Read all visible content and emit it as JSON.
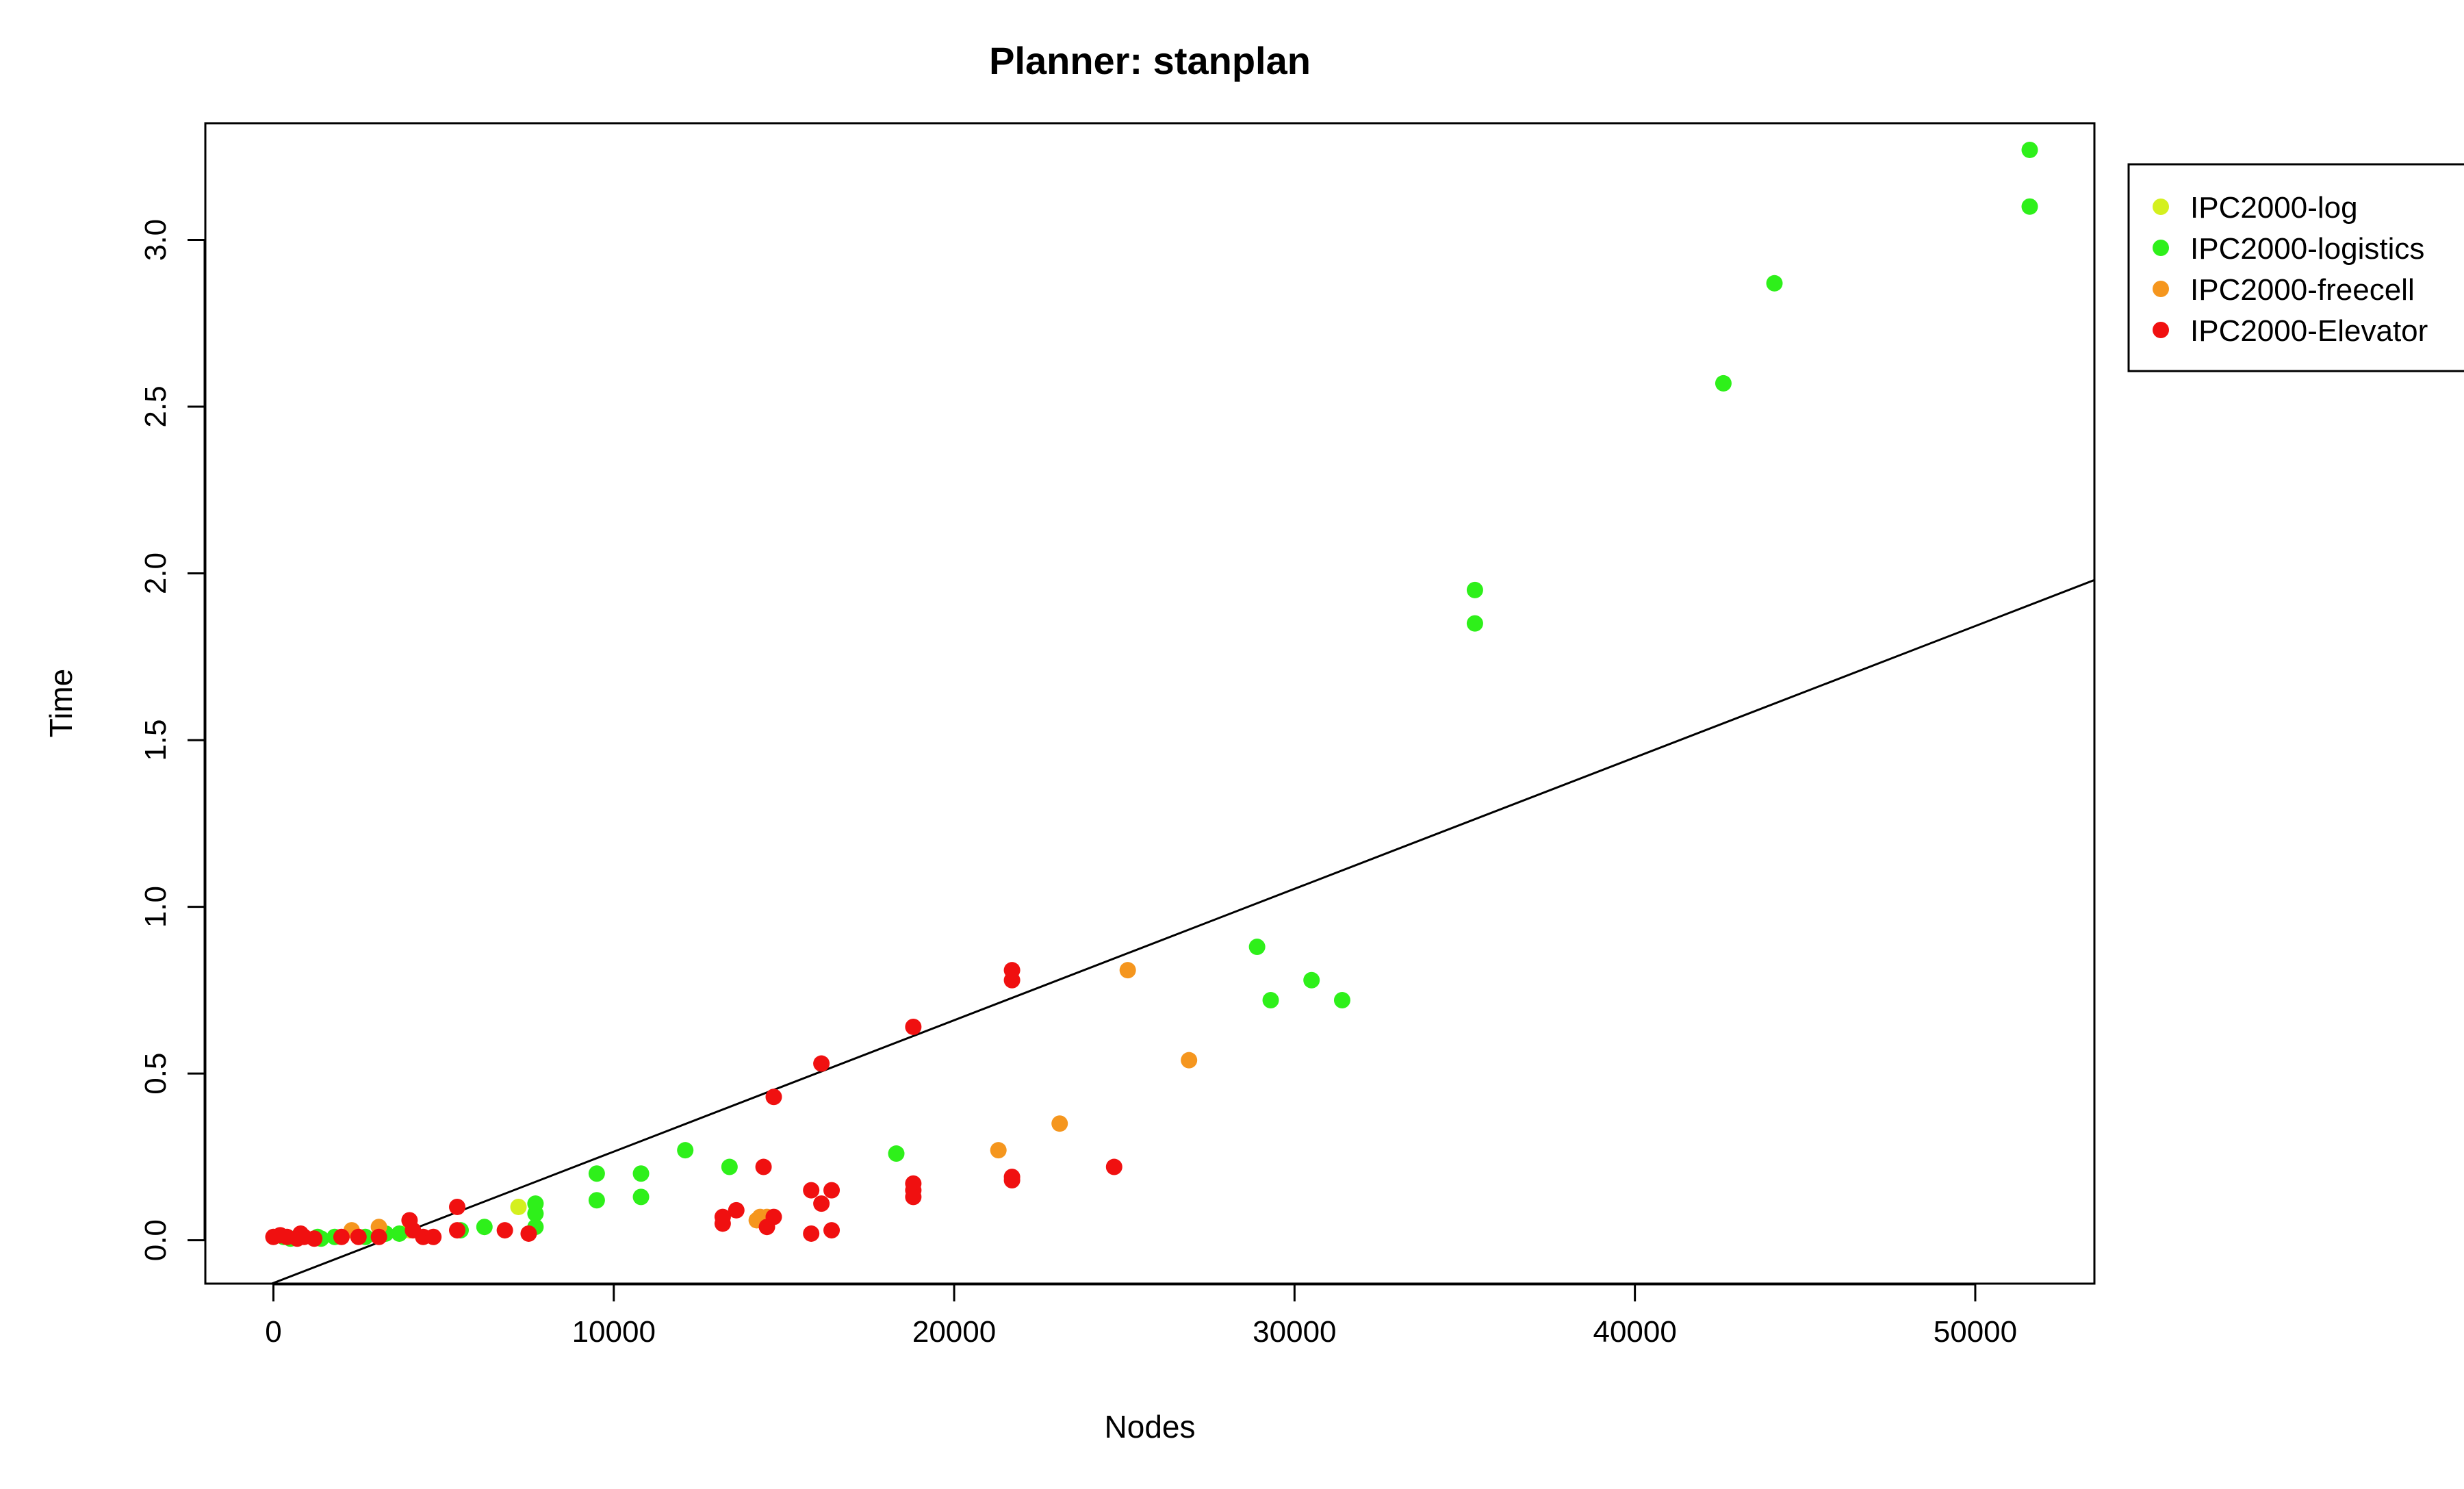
{
  "chart_data": {
    "type": "scatter",
    "title": "Planner: stanplan",
    "xlabel": "Nodes",
    "ylabel": "Time",
    "xlim": [
      -2000,
      53500
    ],
    "ylim": [
      -0.13,
      3.35
    ],
    "x_ticks": [
      "0",
      "10000",
      "20000",
      "30000",
      "40000",
      "50000"
    ],
    "y_ticks": [
      "0.0",
      "0.5",
      "1.0",
      "1.5",
      "2.0",
      "2.5",
      "3.0"
    ],
    "grid": false,
    "legend_position": "top-right",
    "series": [
      {
        "name": "IPC2000-log",
        "color": "#d4f01e",
        "points": [
          [
            7200,
            0.1
          ],
          [
            4000,
            0.03
          ],
          [
            3200,
            0.02
          ]
        ]
      },
      {
        "name": "IPC2000-logistics",
        "color": "#2ef01a",
        "points": [
          [
            300,
            0.01
          ],
          [
            500,
            0.005
          ],
          [
            1300,
            0.01
          ],
          [
            1400,
            0.005
          ],
          [
            1800,
            0.01
          ],
          [
            2700,
            0.01
          ],
          [
            3300,
            0.02
          ],
          [
            3700,
            0.02
          ],
          [
            5500,
            0.03
          ],
          [
            6200,
            0.04
          ],
          [
            7700,
            0.04
          ],
          [
            7700,
            0.11
          ],
          [
            7700,
            0.08
          ],
          [
            9500,
            0.2
          ],
          [
            9500,
            0.12
          ],
          [
            10800,
            0.2
          ],
          [
            10800,
            0.13
          ],
          [
            12100,
            0.27
          ],
          [
            13400,
            0.22
          ],
          [
            18300,
            0.26
          ],
          [
            28900,
            0.88
          ],
          [
            29300,
            0.72
          ],
          [
            30500,
            0.78
          ],
          [
            31400,
            0.72
          ],
          [
            35300,
            1.95
          ],
          [
            35300,
            1.85
          ],
          [
            42600,
            2.57
          ],
          [
            44100,
            2.87
          ],
          [
            51600,
            3.27
          ],
          [
            51600,
            3.1
          ]
        ]
      },
      {
        "name": "IPC2000-freecell",
        "color": "#f5961e",
        "points": [
          [
            2300,
            0.03
          ],
          [
            3100,
            0.04
          ],
          [
            14300,
            0.07
          ],
          [
            14400,
            0.06
          ],
          [
            14500,
            0.07
          ],
          [
            14200,
            0.06
          ],
          [
            21300,
            0.27
          ],
          [
            23100,
            0.35
          ],
          [
            25100,
            0.81
          ],
          [
            26900,
            0.54
          ]
        ]
      },
      {
        "name": "IPC2000-Elevator",
        "color": "#f01010",
        "points": [
          [
            0,
            0.01
          ],
          [
            200,
            0.015
          ],
          [
            400,
            0.01
          ],
          [
            700,
            0.005
          ],
          [
            800,
            0.02
          ],
          [
            900,
            0.01
          ],
          [
            1200,
            0.005
          ],
          [
            2000,
            0.01
          ],
          [
            2500,
            0.01
          ],
          [
            3100,
            0.01
          ],
          [
            4000,
            0.06
          ],
          [
            4100,
            0.03
          ],
          [
            4400,
            0.01
          ],
          [
            4700,
            0.01
          ],
          [
            5400,
            0.1
          ],
          [
            5400,
            0.03
          ],
          [
            6800,
            0.03
          ],
          [
            7500,
            0.02
          ],
          [
            13200,
            0.07
          ],
          [
            13200,
            0.05
          ],
          [
            13600,
            0.09
          ],
          [
            14400,
            0.22
          ],
          [
            14500,
            0.04
          ],
          [
            14700,
            0.07
          ],
          [
            14700,
            0.43
          ],
          [
            15800,
            0.15
          ],
          [
            15800,
            0.02
          ],
          [
            16100,
            0.11
          ],
          [
            16100,
            0.53
          ],
          [
            16400,
            0.15
          ],
          [
            16400,
            0.03
          ],
          [
            18800,
            0.64
          ],
          [
            18800,
            0.17
          ],
          [
            18800,
            0.15
          ],
          [
            18800,
            0.13
          ],
          [
            21700,
            0.81
          ],
          [
            21700,
            0.78
          ],
          [
            21700,
            0.19
          ],
          [
            21700,
            0.18
          ],
          [
            24700,
            0.22
          ]
        ]
      }
    ],
    "fit_line": {
      "x": [
        -2000,
        53500
      ],
      "y": [
        -0.207,
        1.98
      ]
    }
  }
}
